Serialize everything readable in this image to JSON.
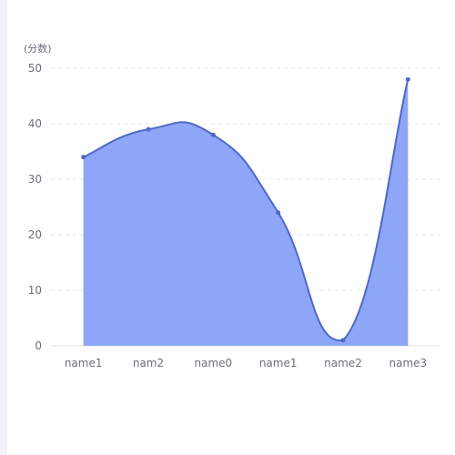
{
  "chart_data": {
    "type": "area",
    "x": [
      "name1",
      "nam2",
      "name0",
      "name1",
      "name2",
      "name3"
    ],
    "series": [
      {
        "values": [
          34,
          39,
          38,
          24,
          1,
          48
        ]
      }
    ],
    "ylabel": "(分数)",
    "ylim": [
      0,
      50
    ],
    "yticks": [
      0,
      10,
      20,
      30,
      40,
      50
    ],
    "grid": true,
    "smooth": true,
    "colors": {
      "line": "#4e68c8",
      "area": "#8da6f7",
      "grid": "#e6e8ee",
      "axis": "#dcdfe6",
      "text": "#6e7079"
    }
  }
}
